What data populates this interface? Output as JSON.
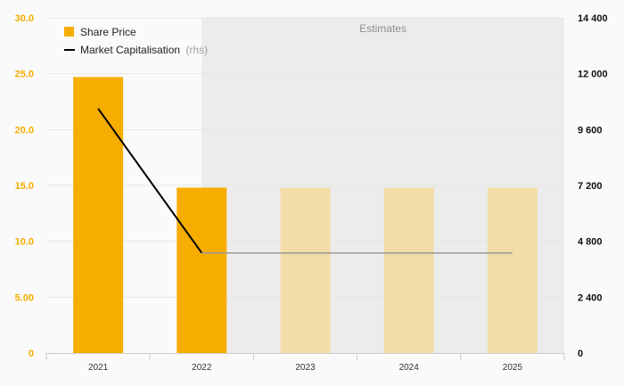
{
  "chart_data": {
    "type": "bar",
    "categories": [
      "2021",
      "2022",
      "2023",
      "2024",
      "2025"
    ],
    "series": [
      {
        "name": "Share Price",
        "type": "bar",
        "axis": "left",
        "values": [
          24.7,
          14.8,
          14.8,
          14.8,
          14.8
        ],
        "estimate": [
          false,
          false,
          true,
          true,
          true
        ]
      },
      {
        "name": "Market Capitalisation",
        "name_note": "(rhs)",
        "type": "line",
        "axis": "right",
        "values": [
          10500,
          4300,
          4300,
          4300,
          4300
        ],
        "estimate": [
          false,
          false,
          true,
          true,
          true
        ]
      }
    ],
    "yticks_left": [
      "0",
      "5.00",
      "10.0",
      "15.0",
      "20.0",
      "25.0",
      "30.0"
    ],
    "yticks_right": [
      "0",
      "2 400",
      "4 800",
      "7 200",
      "9 600",
      "12 000",
      "14 400"
    ],
    "ylim_left": [
      0,
      30
    ],
    "ylim_right": [
      0,
      14400
    ],
    "estimates_label": "Estimates",
    "estimates_from_index": 1,
    "legend_position": "top-left",
    "grid": true
  },
  "colors": {
    "bar": "#f7ad00",
    "bar_estimate": "#f3dca7",
    "line": "#000000",
    "line_estimate": "#999999",
    "estimates_band": "#ececec",
    "grid": "#e6e6e6",
    "left_axis_text": "#f5ad00",
    "right_axis_text": "#111111"
  }
}
